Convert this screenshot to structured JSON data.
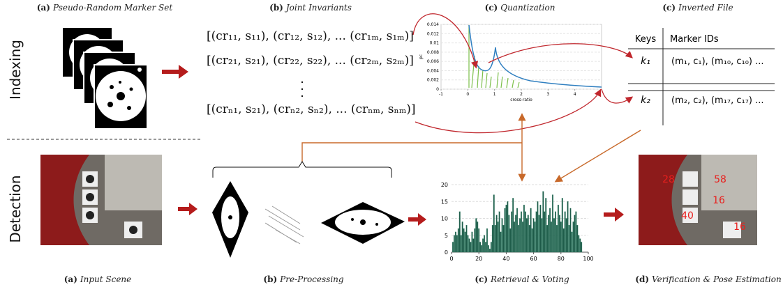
{
  "indexing_label": "Indexing",
  "detection_label": "Detection",
  "captions": [
    {
      "tag": "(a)",
      "title": "Pseudo-Random Marker Set"
    },
    {
      "tag": "(b)",
      "title": "Joint Invariants"
    },
    {
      "tag": "(c)",
      "title": "Quantization"
    },
    {
      "tag": "(c)",
      "title": "Inverted File"
    },
    {
      "tag": "(a)",
      "title": "Input Scene"
    },
    {
      "tag": "(b)",
      "title": "Pre-Processing"
    },
    {
      "tag": "(c)",
      "title": "Retrieval & Voting"
    },
    {
      "tag": "(d)",
      "title": "Verification & Pose Estimation"
    }
  ],
  "joint_invariants": [
    "[(cr₁₁, s₁₁), (cr₁₂, s₁₂), ... (cr₁ₘ, s₁ₘ)]",
    "[(cr₂₁, s₂₁), (cr₂₂, s₂₂), ... (cr₂ₘ, s₂ₘ)]",
    "[(crₙ₁, s₂₁), (crₙ₂, sₙ₂), ... (crₙₘ, sₙₘ)]"
  ],
  "inverted_file": {
    "headers": [
      "Keys",
      "Marker IDs"
    ],
    "rows": [
      [
        "k₁",
        "(m₁, c₁), (m₁₀, c₁₀) ..."
      ],
      [
        "k₂",
        "(m₂, c₂), (m₁₇, c₁₇) ..."
      ]
    ]
  },
  "verification_labels": [
    "28",
    "58",
    "16",
    "40",
    "16"
  ],
  "quantization_chart": {
    "type": "line",
    "x_label": "cross-ratio",
    "y_label": "pc",
    "xlim": [
      -1,
      5
    ],
    "xticks": [
      -1,
      0,
      1,
      2,
      3,
      4
    ],
    "ylim": [
      0,
      0.014
    ],
    "yticks": [
      0,
      0.002,
      0.004,
      0.006,
      0.008,
      0.01,
      0.012,
      0.014
    ]
  },
  "chart_data": {
    "type": "bar",
    "color": "#1d5a48",
    "xlim": [
      0,
      100
    ],
    "xticks": [
      0,
      20,
      40,
      60,
      80,
      100
    ],
    "ylim": [
      0,
      20
    ],
    "yticks": [
      0,
      5,
      10,
      15,
      20
    ],
    "x": [
      1,
      2,
      3,
      4,
      5,
      6,
      7,
      8,
      9,
      10,
      11,
      12,
      13,
      14,
      15,
      16,
      17,
      18,
      19,
      20,
      21,
      22,
      23,
      24,
      25,
      26,
      27,
      28,
      29,
      30,
      31,
      32,
      33,
      34,
      35,
      36,
      37,
      38,
      39,
      40,
      41,
      42,
      43,
      44,
      45,
      46,
      47,
      48,
      49,
      50,
      51,
      52,
      53,
      54,
      55,
      56,
      57,
      58,
      59,
      60,
      61,
      62,
      63,
      64,
      65,
      66,
      67,
      68,
      69,
      70,
      71,
      72,
      73,
      74,
      75,
      76,
      77,
      78,
      79,
      80,
      81,
      82,
      83,
      84,
      85,
      86,
      87,
      88,
      89,
      90,
      91,
      92,
      93,
      94,
      95
    ],
    "values": [
      3,
      5,
      6,
      5,
      7,
      12,
      5,
      9,
      7,
      6,
      8,
      5,
      4,
      3,
      6,
      4,
      7,
      10,
      9,
      7,
      3,
      2,
      4,
      5,
      3,
      7,
      2,
      1,
      3,
      8,
      17,
      8,
      11,
      9,
      12,
      6,
      10,
      8,
      13,
      14,
      15,
      11,
      7,
      12,
      16,
      9,
      11,
      13,
      8,
      10,
      12,
      9,
      14,
      12,
      10,
      11,
      8,
      13,
      7,
      10,
      9,
      12,
      15,
      11,
      14,
      10,
      18,
      12,
      16,
      8,
      11,
      13,
      9,
      17,
      10,
      12,
      8,
      14,
      11,
      9,
      16,
      7,
      12,
      10,
      15,
      8,
      13,
      6,
      9,
      11,
      12,
      8,
      5,
      4,
      3
    ]
  }
}
